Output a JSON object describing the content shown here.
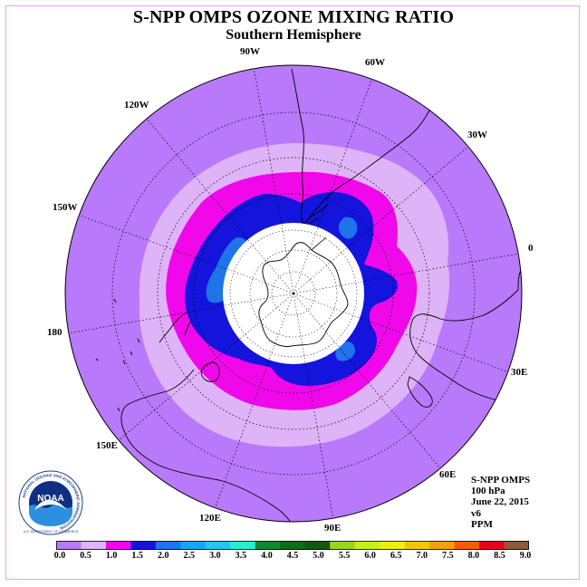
{
  "title": "S-NPP OMPS OZONE MIXING RATIO",
  "subtitle": "Southern Hemisphere",
  "longitude_labels": [
    "90W",
    "60W",
    "30W",
    "0",
    "30E",
    "60E",
    "90E",
    "120E",
    "150E",
    "180",
    "150W",
    "120W"
  ],
  "info": {
    "instrument": "S-NPP OMPS",
    "pressure": "100 hPa",
    "date": "June 22, 2015",
    "version": "v6",
    "unit": "PPM"
  },
  "logo": {
    "name": "NOAA",
    "ring_text": "NATIONAL OCEANIC AND ATMOSPHERIC ADMINISTRATION",
    "bottom_text": "U.S. DEPARTMENT OF COMMERCE"
  },
  "colorbar": {
    "ticks": [
      "0.0",
      "0.5",
      "1.0",
      "1.5",
      "2.0",
      "2.5",
      "3.0",
      "3.5",
      "4.0",
      "4.5",
      "5.0",
      "5.5",
      "6.0",
      "6.5",
      "7.0",
      "7.5",
      "8.0",
      "8.5",
      "9.0"
    ],
    "colors": [
      "#b879fa",
      "#dfb3f7",
      "#f007ea",
      "#1414dc",
      "#1f74ea",
      "#19a6f0",
      "#22c7f3",
      "#25f0d4",
      "#0e8a2c",
      "#0c6c18",
      "#0f5a10",
      "#9bd520",
      "#c5ef16",
      "#f0ef0c",
      "#f2c70a",
      "#f2a10c",
      "#f55a0e",
      "#e5051a",
      "#8e5a3a"
    ]
  },
  "map": {
    "projection": "south-polar-stereographic",
    "coastlines": true,
    "graticule": "dotted",
    "polar_mask": "white",
    "contour_levels_shown": [
      "0.0-0.5",
      "0.5-1.0",
      "1.0-1.5",
      "1.5-2.0",
      "2.0-2.5"
    ]
  }
}
